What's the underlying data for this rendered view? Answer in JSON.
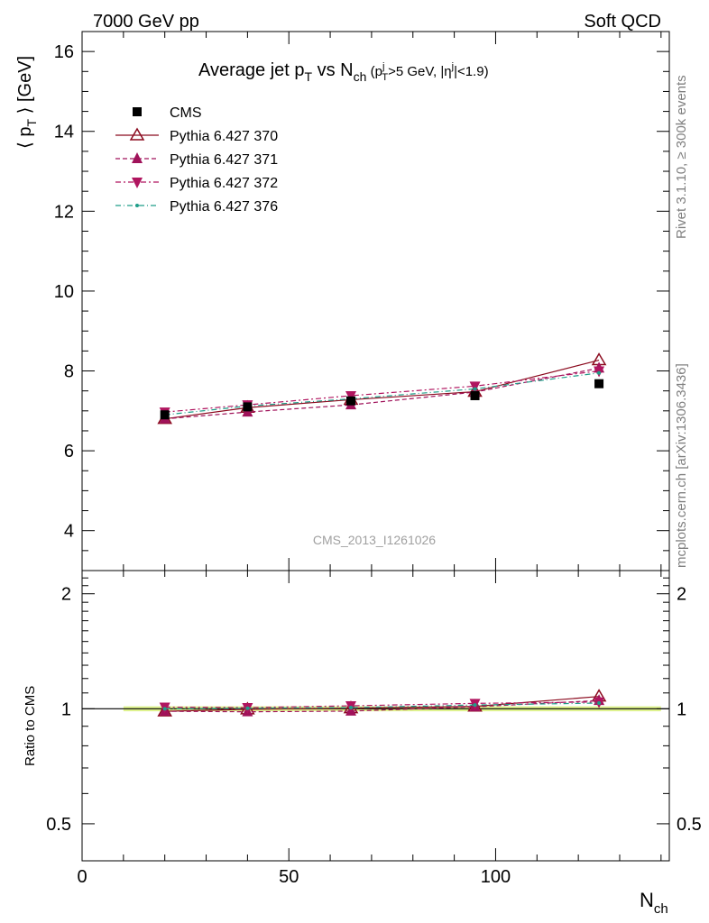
{
  "header": {
    "left": "7000 GeV pp",
    "right": "Soft QCD"
  },
  "side_text": {
    "rivet": "Rivet 3.1.10, ≥ 300k events",
    "mcplots": "mcplots.cern.ch [arXiv:1306.3436]"
  },
  "watermark": "CMS_2013_I1261026",
  "chart_data": [
    {
      "type": "line",
      "title_parts": {
        "main": "Average jet p",
        "main_sub": "T",
        "vs": " vs N",
        "vs_sub": "ch",
        "cut_open": " (p",
        "cut_sup": "j",
        "cut_sub": "T",
        "cut_mid": ">5 GeV, |η",
        "cut_sup2": "j",
        "cut_close": "|<1.9)"
      },
      "ylabel_parts": {
        "open": "⟨ p",
        "sub": "T",
        "close": " ⟩ [GeV]"
      },
      "xlim": [
        0,
        142
      ],
      "ylim": [
        3,
        16.5
      ],
      "yticks": [
        4,
        6,
        8,
        10,
        12,
        14,
        16
      ],
      "legend_position": "top-left",
      "series": [
        {
          "name": "CMS",
          "color": "#000000",
          "marker": "square",
          "x": [
            20,
            40,
            65,
            95,
            125
          ],
          "y": [
            6.9,
            7.1,
            7.25,
            7.38,
            7.68
          ]
        },
        {
          "name": "Pythia 6.427 370",
          "color": "#8b0a1e",
          "marker": "triangle-open",
          "x": [
            20,
            40,
            65,
            95,
            125
          ],
          "y": [
            6.8,
            7.08,
            7.28,
            7.48,
            8.27
          ]
        },
        {
          "name": "Pythia 6.427 371",
          "color": "#a0125a",
          "marker": "triangle-up",
          "x": [
            20,
            40,
            65,
            95,
            125
          ],
          "y": [
            6.8,
            6.97,
            7.15,
            7.47,
            8.07
          ]
        },
        {
          "name": "Pythia 6.427 372",
          "color": "#b0155f",
          "marker": "triangle-down",
          "x": [
            20,
            40,
            65,
            95,
            125
          ],
          "y": [
            6.97,
            7.15,
            7.38,
            7.62,
            8.0
          ]
        },
        {
          "name": "Pythia 6.427 376",
          "color": "#1f9e89",
          "marker": "dot",
          "x": [
            20,
            40,
            65,
            95,
            125
          ],
          "y": [
            6.9,
            7.12,
            7.3,
            7.55,
            7.95
          ]
        }
      ]
    },
    {
      "type": "line",
      "ylabel": "Ratio to CMS",
      "xlabel_parts": {
        "main": "N",
        "sub": "ch"
      },
      "xlim": [
        0,
        142
      ],
      "ylim": [
        0.4,
        2.3
      ],
      "log_y": true,
      "yticks": [
        0.5,
        1,
        2
      ],
      "ytick_labels": [
        "0.5",
        "1",
        "2"
      ],
      "xticks": [
        0,
        50,
        100
      ],
      "xtick_labels": [
        "0",
        "50",
        "100"
      ],
      "band_color": "#d8f07a",
      "series": [
        {
          "name": "Pythia 6.427 370",
          "x": [
            20,
            40,
            65,
            95,
            125
          ],
          "y": [
            0.985,
            0.997,
            1.004,
            1.014,
            1.077
          ]
        },
        {
          "name": "Pythia 6.427 371",
          "x": [
            20,
            40,
            65,
            95,
            125
          ],
          "y": [
            0.985,
            0.982,
            0.986,
            1.012,
            1.051
          ]
        },
        {
          "name": "Pythia 6.427 372",
          "x": [
            20,
            40,
            65,
            95,
            125
          ],
          "y": [
            1.01,
            1.007,
            1.018,
            1.033,
            1.042
          ]
        },
        {
          "name": "Pythia 6.427 376",
          "x": [
            20,
            40,
            65,
            95,
            125
          ],
          "y": [
            1.0,
            1.003,
            1.007,
            1.023,
            1.035
          ]
        }
      ]
    }
  ]
}
